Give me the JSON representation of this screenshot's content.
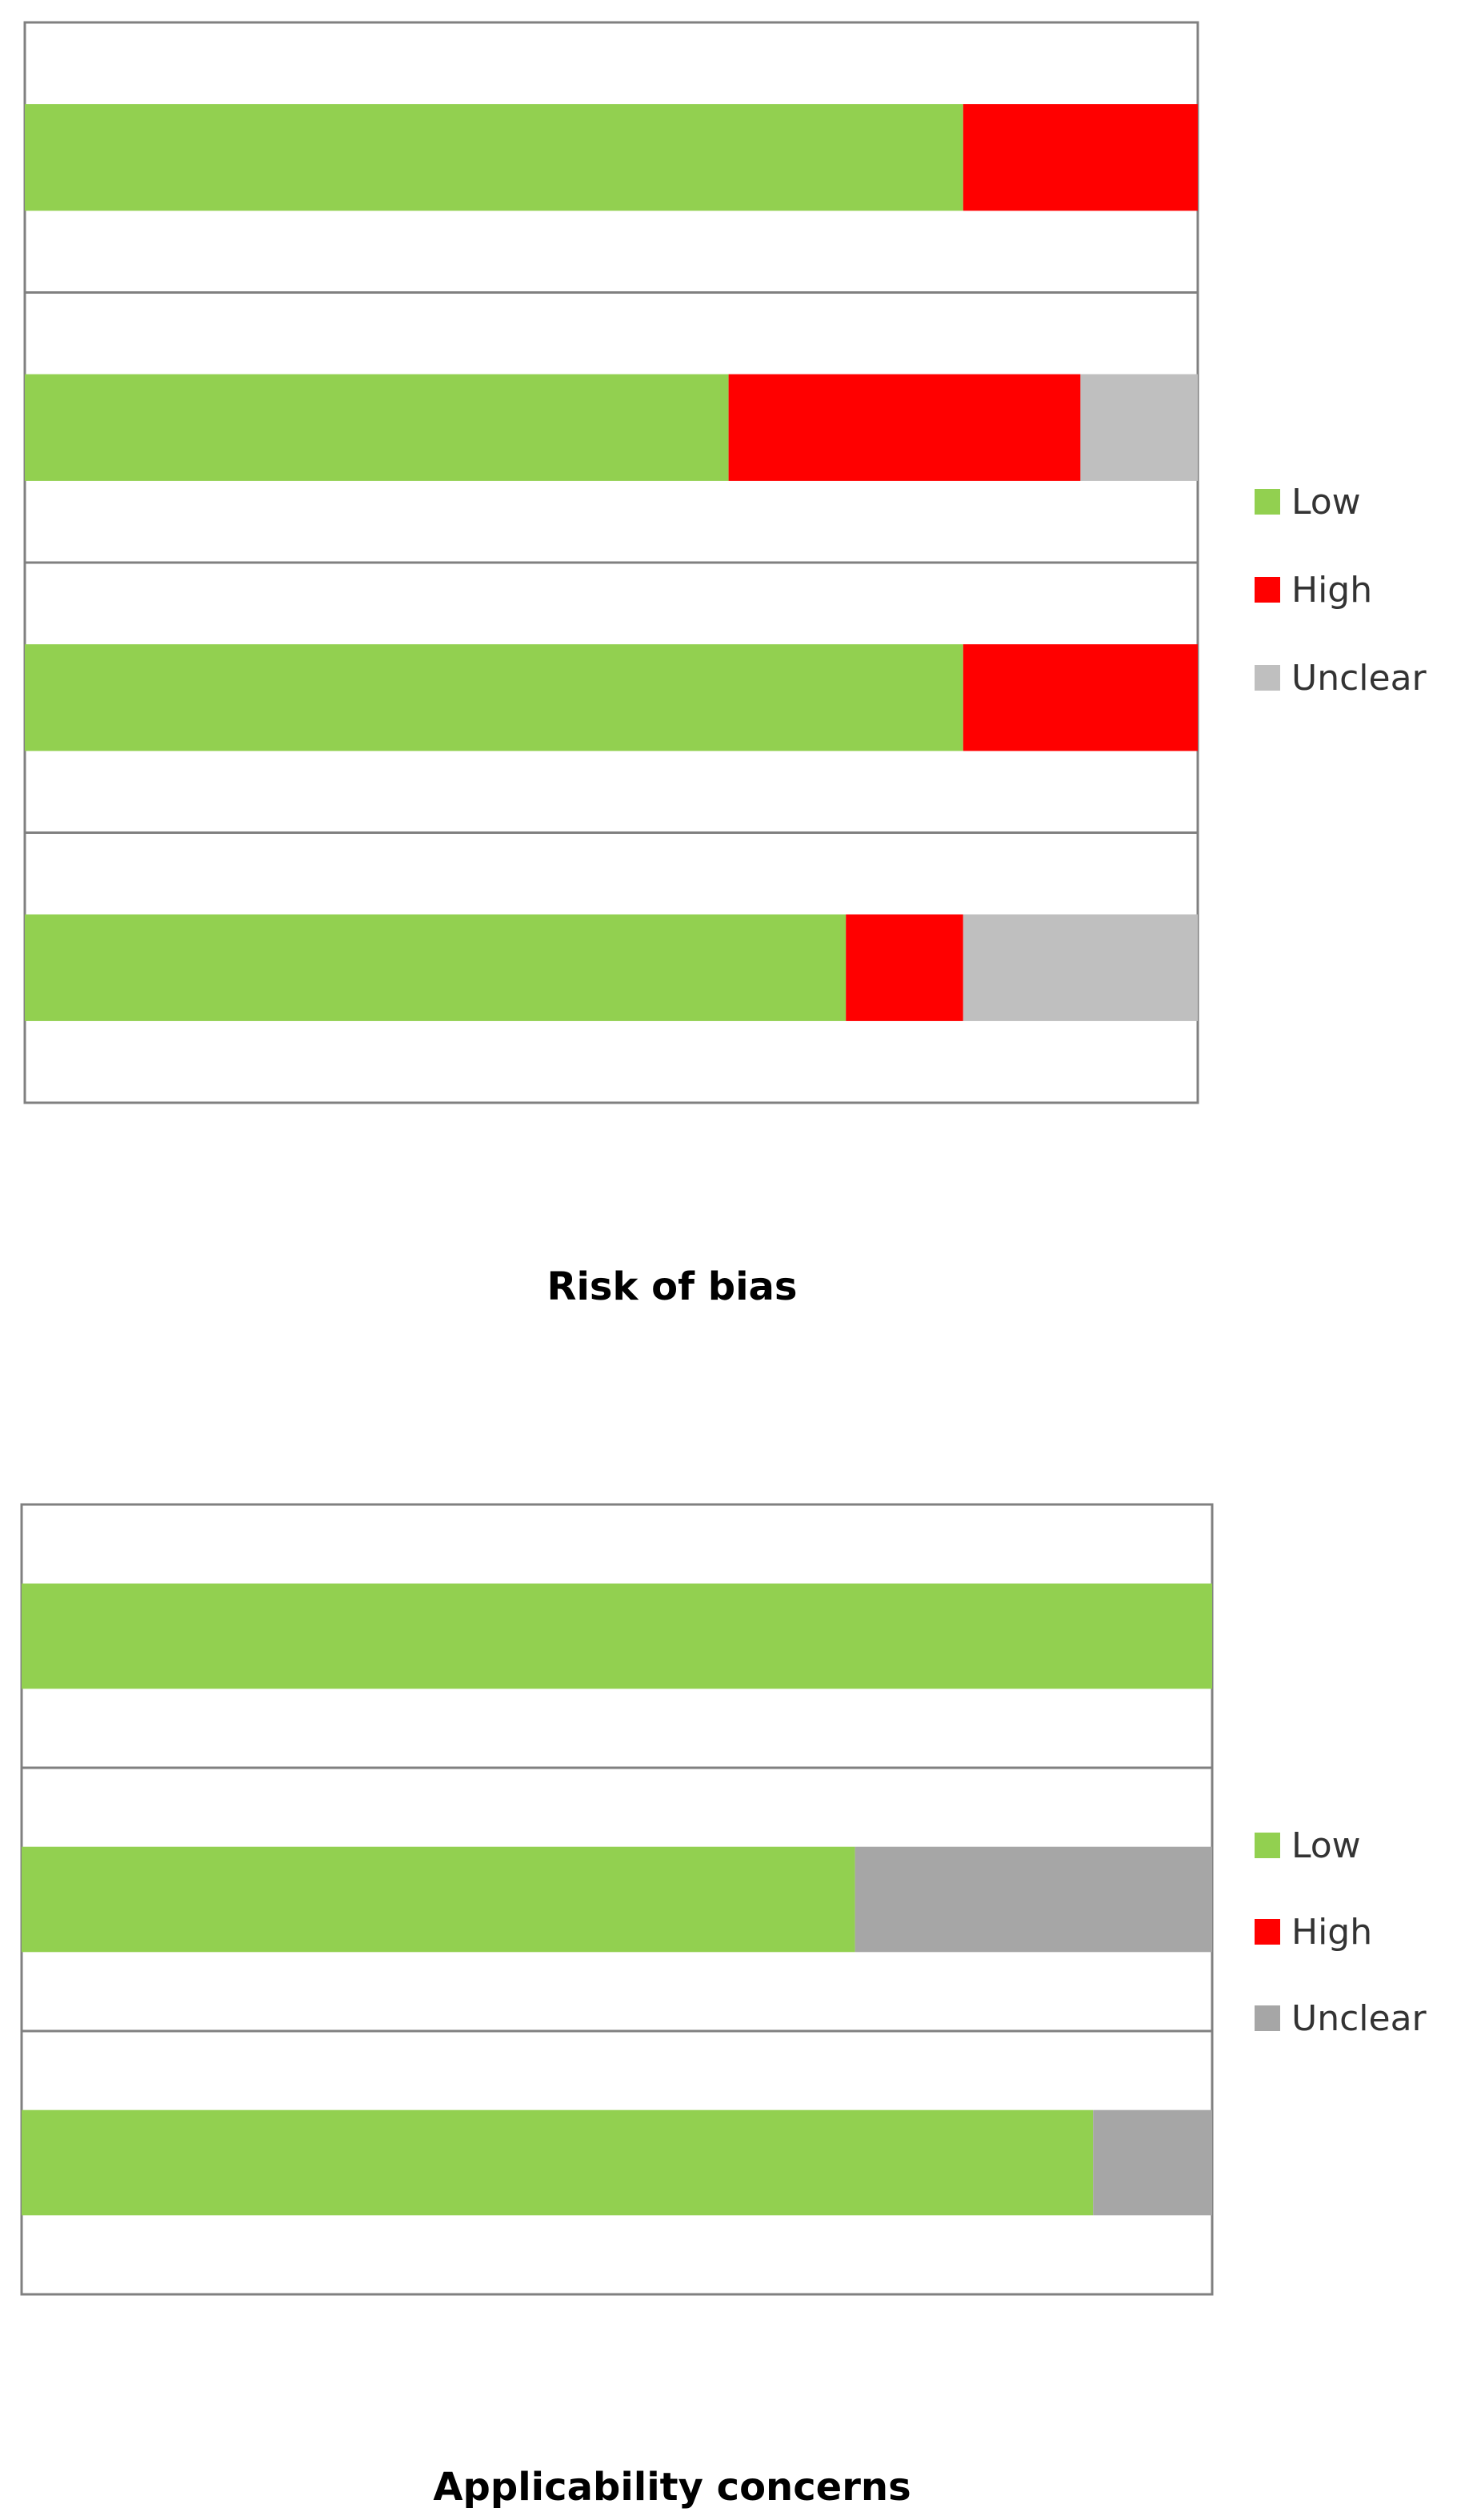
{
  "colors": {
    "low": "#92D050",
    "high": "#FF0000",
    "unclear_rob": "#BFBFBF",
    "unclear_app": "#A6A6A6",
    "frame": "#808080"
  },
  "chart_data": [
    {
      "type": "bar",
      "orientation": "horizontal",
      "stacked": true,
      "percent_stacked": true,
      "title": "Risk of bias",
      "categories": [
        "",
        "",
        "",
        ""
      ],
      "series": [
        {
          "name": "Low",
          "color": "#92D050",
          "values": [
            80,
            60,
            80,
            70
          ]
        },
        {
          "name": "High",
          "color": "#FF0000",
          "values": [
            20,
            30,
            20,
            10
          ]
        },
        {
          "name": "Unclear",
          "color": "#BFBFBF",
          "values": [
            0,
            10,
            0,
            20
          ]
        }
      ],
      "xlim": [
        0,
        100
      ],
      "grid": false,
      "legend_position": "right"
    },
    {
      "type": "bar",
      "orientation": "horizontal",
      "stacked": true,
      "percent_stacked": true,
      "title": "Applicability concerns",
      "categories": [
        "",
        "",
        ""
      ],
      "series": [
        {
          "name": "Low",
          "color": "#92D050",
          "values": [
            100,
            70,
            90
          ]
        },
        {
          "name": "High",
          "color": "#FF0000",
          "values": [
            0,
            0,
            0
          ]
        },
        {
          "name": "Unclear",
          "color": "#A6A6A6",
          "values": [
            0,
            30,
            10
          ]
        }
      ],
      "xlim": [
        0,
        100
      ],
      "grid": false,
      "legend_position": "right"
    }
  ]
}
